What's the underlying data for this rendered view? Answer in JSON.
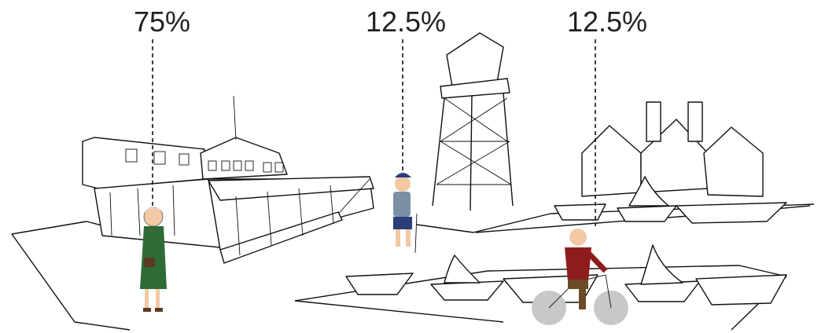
{
  "labels": [
    "75%",
    "12.5%",
    "12.5%"
  ]
}
